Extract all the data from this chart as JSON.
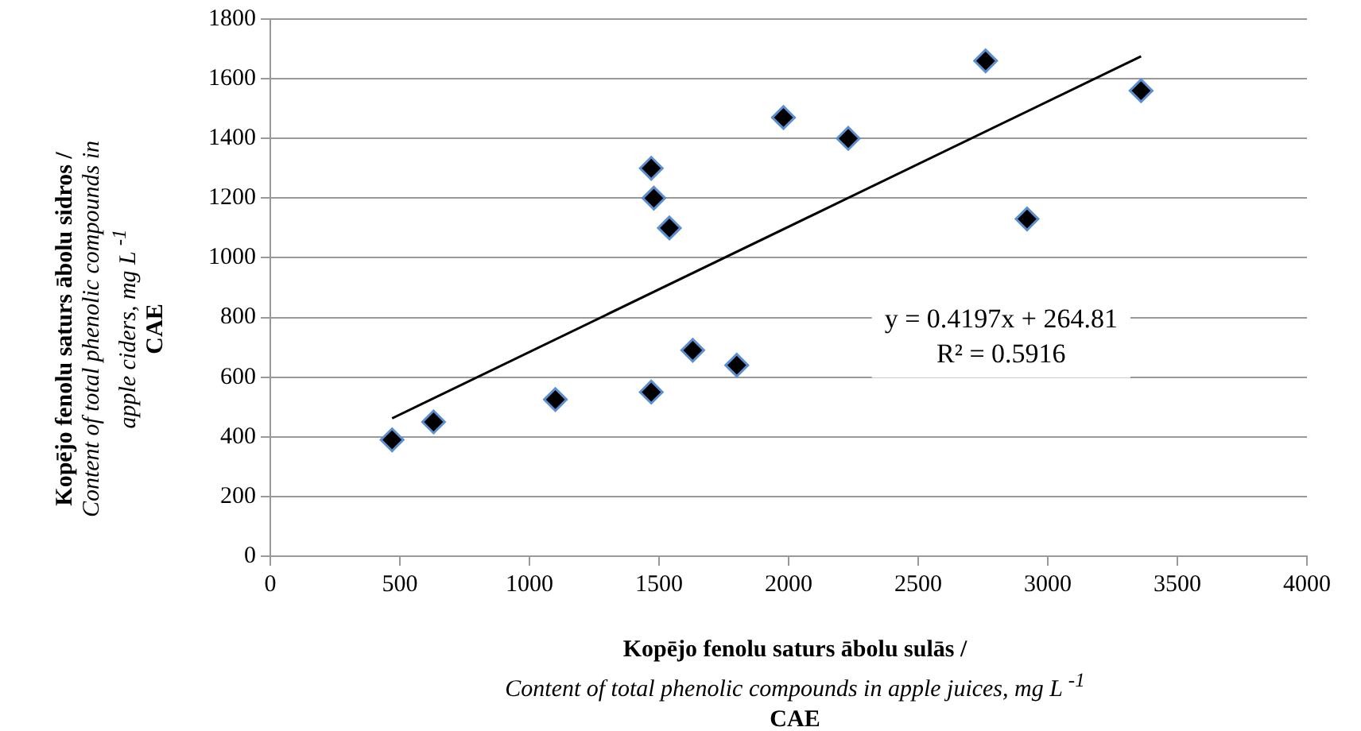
{
  "chart_data": {
    "type": "scatter",
    "xlabel": "Kopējo fenolu saturs ābolu sulās  /\nContent of total phenolic compounds in apple juices, mg L $^{-1}$\nCAE",
    "ylabel": "Kopējo fenolu saturs ābolu sidros  /\nContent of total phenolic compounds in\napple ciders, mg L $^{-1}$\nCAE",
    "series": [
      {
        "type": "scatter",
        "marker": "diamond",
        "color": "#000000",
        "x": [
          470,
          630,
          1100,
          1470,
          1480,
          1540,
          1470,
          1630,
          1800,
          1980,
          2230,
          2760,
          2920,
          3360
        ],
        "values": [
          390,
          450,
          525,
          1300,
          1200,
          1100,
          550,
          690,
          640,
          1470,
          1400,
          1660,
          1130,
          1560
        ]
      },
      {
        "type": "line",
        "marker": "none",
        "color": "#000000",
        "x": [
          470,
          3360
        ],
        "values": [
          462,
          1675
        ]
      }
    ],
    "annotations": [
      "y = 0.4197x + 264.81",
      "R² = 0.5916"
    ],
    "xlim": [
      0,
      4000
    ],
    "xticks": [
      0,
      500,
      1000,
      1500,
      2000,
      2500,
      3000,
      3500,
      4000
    ],
    "ylim": [
      0,
      1800
    ],
    "yticks": [
      0,
      200,
      400,
      600,
      800,
      1000,
      1200,
      1400,
      1600,
      1800
    ],
    "grid": "y",
    "legend": false
  }
}
